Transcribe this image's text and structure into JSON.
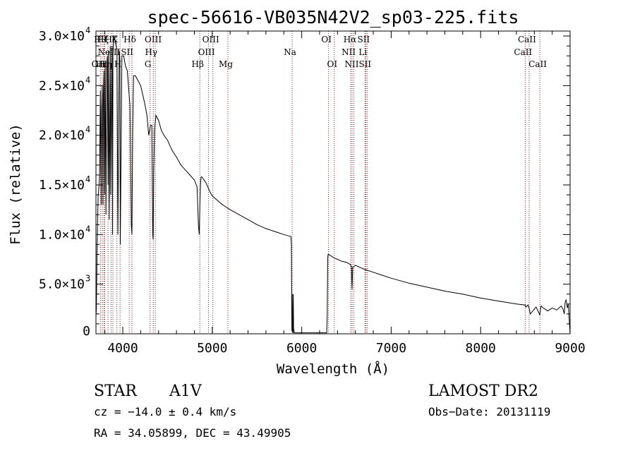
{
  "chart_data": {
    "type": "line",
    "title": "spec-56616-VB035N42V2_sp03-225.fits",
    "xlabel": "Wavelength (Å)",
    "ylabel": "Flux (relative)",
    "xlim": [
      3700,
      9000
    ],
    "ylim": [
      0,
      30500
    ],
    "x_ticks": [
      {
        "value": 4000,
        "label": "4000"
      },
      {
        "value": 5000,
        "label": "5000"
      },
      {
        "value": 6000,
        "label": "6000"
      },
      {
        "value": 7000,
        "label": "7000"
      },
      {
        "value": 8000,
        "label": "8000"
      },
      {
        "value": 9000,
        "label": "9000"
      }
    ],
    "y_ticks": [
      {
        "value": 0,
        "mantissa": "0",
        "exp": ""
      },
      {
        "value": 5000,
        "mantissa": "5.0×10",
        "exp": "3"
      },
      {
        "value": 10000,
        "mantissa": "1.0×10",
        "exp": "4"
      },
      {
        "value": 15000,
        "mantissa": "1.5×10",
        "exp": "4"
      },
      {
        "value": 20000,
        "mantissa": "2.0×10",
        "exp": "4"
      },
      {
        "value": 25000,
        "mantissa": "2.5×10",
        "exp": "4"
      },
      {
        "value": 30000,
        "mantissa": "3.0×10",
        "exp": "4"
      }
    ],
    "series": [
      {
        "x": [
          3700,
          3705,
          3712,
          3720,
          3725,
          3735,
          3740,
          3750,
          3758,
          3762,
          3770,
          3778,
          3783,
          3790,
          3797,
          3803,
          3812,
          3820,
          3828,
          3835,
          3840,
          3848,
          3860,
          3866,
          3880,
          3885,
          3890,
          3897,
          3910,
          3935,
          3945,
          3960,
          3968,
          3972,
          3990,
          4010,
          4030,
          4050,
          4080,
          4095,
          4102,
          4110,
          4120,
          4140,
          4170,
          4200,
          4225,
          4250,
          4270,
          4290,
          4310,
          4325,
          4335,
          4340,
          4345,
          4355,
          4370,
          4400,
          4430,
          4460,
          4500,
          4550,
          4600,
          4650,
          4700,
          4750,
          4800,
          4830,
          4845,
          4855,
          4862,
          4868,
          4875,
          4885,
          4900,
          4930,
          4950,
          4980,
          5000,
          5050,
          5100,
          5150,
          5200,
          5300,
          5400,
          5500,
          5600,
          5700,
          5800,
          5880,
          5885,
          5890,
          5893,
          5896,
          5900,
          5905,
          5910,
          5912,
          5915,
          6280,
          6285,
          6290,
          6295,
          6300,
          6320,
          6350,
          6400,
          6450,
          6500,
          6540,
          6555,
          6563,
          6570,
          6585,
          6600,
          6650,
          6700,
          6800,
          6900,
          7000,
          7200,
          7400,
          7600,
          7800,
          8000,
          8200,
          8400,
          8498,
          8505,
          8530,
          8542,
          8555,
          8620,
          8662,
          8675,
          8700,
          8750,
          8800,
          8850,
          8900,
          8920,
          8935,
          8945,
          8955,
          8970,
          8980,
          8990,
          9000
        ],
        "y": [
          1800,
          2500,
          8000,
          12000,
          14000,
          15000,
          16000,
          24500,
          13000,
          22000,
          25000,
          13000,
          24000,
          26500,
          14000,
          27000,
          12000,
          27000,
          28000,
          15000,
          28500,
          11500,
          29000,
          14000,
          29000,
          10000,
          28000,
          29500,
          29800,
          28500,
          10000,
          28500,
          27500,
          9000,
          28000,
          28000,
          27000,
          26500,
          23000,
          11000,
          10000,
          20000,
          26000,
          26000,
          25500,
          25000,
          24000,
          23000,
          22000,
          20000,
          21000,
          21000,
          10000,
          9500,
          16000,
          20500,
          22000,
          21500,
          20500,
          20000,
          19500,
          18500,
          17800,
          17000,
          16500,
          16000,
          15500,
          14800,
          11000,
          10000,
          13000,
          15000,
          15800,
          15800,
          15600,
          15200,
          14800,
          14200,
          13900,
          13500,
          13100,
          12800,
          12500,
          12000,
          11500,
          11000,
          10600,
          10300,
          10000,
          9800,
          9000,
          300,
          4000,
          200,
          100,
          4000,
          100,
          500,
          100,
          100,
          2000,
          7500,
          8000,
          8000,
          7900,
          7700,
          7500,
          7300,
          7200,
          7000,
          6800,
          4500,
          6700,
          6800,
          6900,
          6700,
          6500,
          6200,
          5900,
          5600,
          5100,
          4700,
          4300,
          4000,
          3600,
          3300,
          3000,
          2900,
          2700,
          2900,
          2600,
          2000,
          2700,
          1900,
          2800,
          2600,
          2300,
          2600,
          2400,
          2800,
          2500,
          2000,
          3200,
          3400,
          2600,
          3000,
          1500,
          0
        ]
      }
    ],
    "spectral_lines": [
      {
        "x": 3750,
        "label": "OII",
        "row": 2
      },
      {
        "x": 3771,
        "label": "Hθ",
        "row": 0
      },
      {
        "x": 3789,
        "label": "Hη",
        "row": 2
      },
      {
        "x": 3798,
        "label": "Hζ",
        "row": 0
      },
      {
        "x": 3835,
        "label": "Hη",
        "row": 2
      },
      {
        "x": 3869,
        "label": "NeIII",
        "row": 1
      },
      {
        "x": 3889,
        "label": "Hζ",
        "row": 0
      },
      {
        "x": 3934,
        "label": "K",
        "row": 0
      },
      {
        "x": 3969,
        "label": "H",
        "row": 2
      },
      {
        "x": 4072,
        "label": "SII",
        "row": 1
      },
      {
        "x": 4102,
        "label": "Hδ",
        "row": 0
      },
      {
        "x": 4305,
        "label": "G",
        "row": 2
      },
      {
        "x": 4341,
        "label": "Hγ",
        "row": 1
      },
      {
        "x": 4363,
        "label": "OIII",
        "row": 0
      },
      {
        "x": 4861,
        "label": "Hβ",
        "row": 2
      },
      {
        "x": 4959,
        "label": "OIII",
        "row": 1
      },
      {
        "x": 5007,
        "label": "OIII",
        "row": 0
      },
      {
        "x": 5175,
        "label": "Mg",
        "row": 2
      },
      {
        "x": 5893,
        "label": "Na",
        "row": 1
      },
      {
        "x": 6300,
        "label": "OI",
        "row": 0
      },
      {
        "x": 6364,
        "label": "OI",
        "row": 2
      },
      {
        "x": 6548,
        "label": "NII",
        "row": 1
      },
      {
        "x": 6563,
        "label": "Hα",
        "row": 0
      },
      {
        "x": 6583,
        "label": "NII",
        "row": 2
      },
      {
        "x": 6707,
        "label": "Li",
        "row": 1
      },
      {
        "x": 6716,
        "label": "SII",
        "row": 0
      },
      {
        "x": 6731,
        "label": "SII",
        "row": 2
      },
      {
        "x": 8498,
        "label": "CaII",
        "row": 1
      },
      {
        "x": 8542,
        "label": "CaII",
        "row": 0
      },
      {
        "x": 8662,
        "label": "CaII",
        "row": 2
      }
    ],
    "grid": false,
    "line_color": "#000000",
    "marker_color": "#8b1a1a"
  },
  "info": {
    "object_class": "STAR",
    "subclass": "A1V",
    "survey": "LAMOST DR2",
    "redshift_text": "cz = −14.0 ± 0.4 km/s",
    "obs_date": "Obs−Date: 20131119",
    "coords": "RA =  34.05899, DEC =  43.49905"
  }
}
